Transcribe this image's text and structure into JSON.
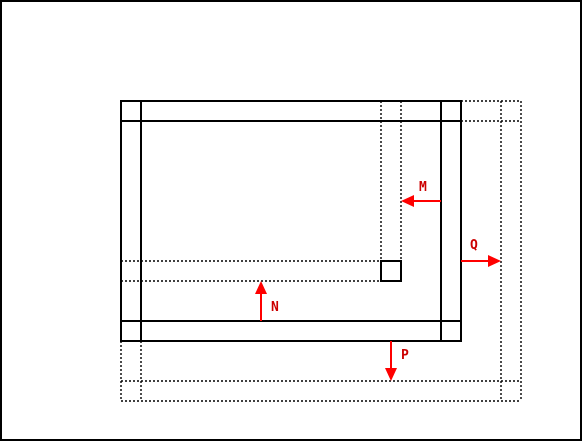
{
  "colors": {
    "arrow": "#ff0000",
    "label": "#cc0000",
    "line": "#000000"
  },
  "arrows": {
    "M": {
      "label": "M",
      "direction": "left"
    },
    "N": {
      "label": "N",
      "direction": "up"
    },
    "P": {
      "label": "P",
      "direction": "down"
    },
    "Q": {
      "label": "Q",
      "direction": "right"
    }
  }
}
